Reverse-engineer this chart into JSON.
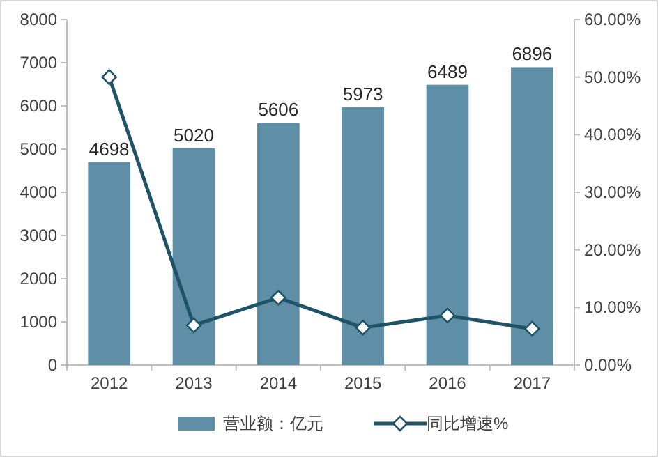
{
  "chart_data": {
    "type": "bar",
    "categories": [
      "2012",
      "2013",
      "2014",
      "2015",
      "2016",
      "2017"
    ],
    "series": [
      {
        "name": "营业额：亿元",
        "color": "#5f8fa6",
        "values": [
          4698,
          5020,
          5606,
          5973,
          6489,
          6896
        ],
        "value_labels": [
          "4698",
          "5020",
          "5606",
          "5973",
          "6489",
          "6896"
        ]
      },
      {
        "name": "同比增速%",
        "type": "line",
        "axis": "y2",
        "color": "#1f5468",
        "values": [
          50,
          6.9,
          11.7,
          6.5,
          8.6,
          6.3
        ]
      }
    ],
    "ylim": [
      0,
      8000
    ],
    "yticks": [
      0,
      1000,
      2000,
      3000,
      4000,
      5000,
      6000,
      7000,
      8000
    ],
    "y2lim": [
      0,
      60
    ],
    "y2ticks": [
      {
        "value": 0,
        "label": "0.00%"
      },
      {
        "value": 10,
        "label": "10.00%"
      },
      {
        "value": 20,
        "label": "20.00%"
      },
      {
        "value": 30,
        "label": "30.00%"
      },
      {
        "value": 40,
        "label": "40.00%"
      },
      {
        "value": 50,
        "label": "50.00%"
      },
      {
        "value": 60,
        "label": "60.00%"
      }
    ],
    "marker": "diamond",
    "legend": "bottom"
  }
}
